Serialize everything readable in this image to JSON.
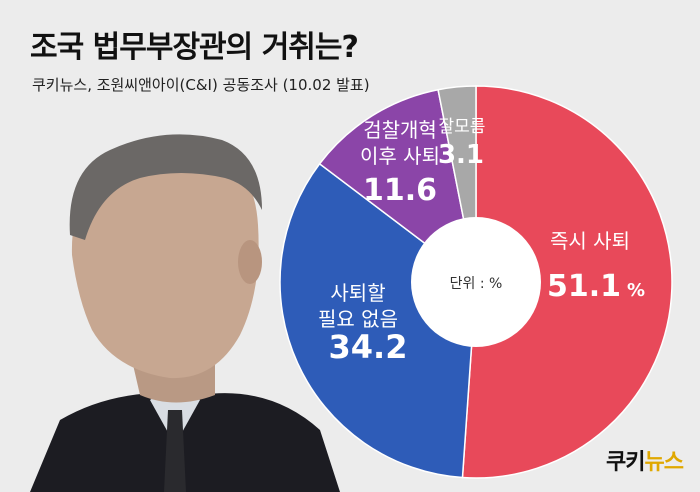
{
  "header": {
    "title": "조국 법무부장관의 거취는?",
    "subtitle": "쿠키뉴스, 조원씨앤아이(C&I) 공동조사 (10.02 발표)"
  },
  "chart_data": {
    "type": "pie",
    "variant": "donut",
    "unit_note": "단위 : %",
    "series": [
      {
        "label": "즉시 사퇴",
        "value": 51.1,
        "value_text": "51.1",
        "unit": "%",
        "color": "#e8495a"
      },
      {
        "label": "사퇴할 필요 없음",
        "label_lines": [
          "사퇴할",
          "필요 없음"
        ],
        "value": 34.2,
        "value_text": "34.2",
        "unit": "",
        "color": "#2e5cb8"
      },
      {
        "label": "검찰개혁 이후 사퇴",
        "label_lines": [
          "검찰개혁",
          "이후 사퇴"
        ],
        "value": 11.6,
        "value_text": "11.6",
        "unit": "",
        "color": "#8b45a8"
      },
      {
        "label": "잘모름",
        "value": 3.1,
        "value_text": "3.1",
        "unit": "",
        "color": "#a8a8a8"
      }
    ]
  },
  "logo": {
    "part1": "쿠키",
    "part2": "뉴스"
  }
}
